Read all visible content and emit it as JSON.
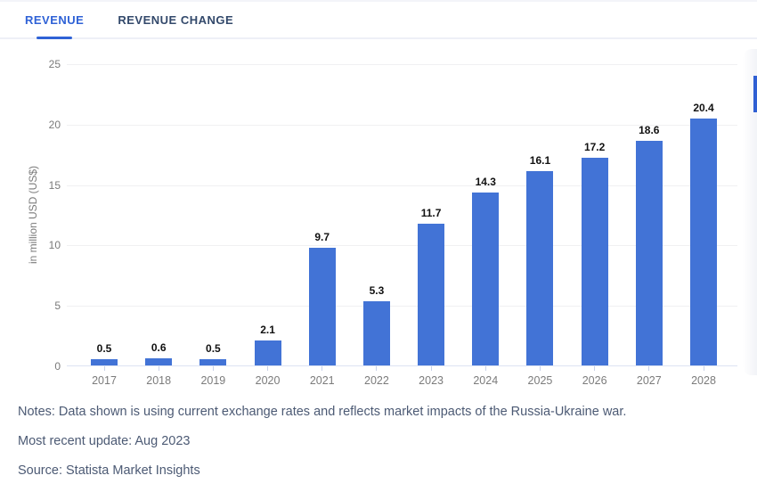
{
  "tabs": [
    {
      "label": "REVENUE",
      "active": true
    },
    {
      "label": "REVENUE CHANGE",
      "active": false
    }
  ],
  "chart_data": {
    "type": "bar",
    "title": "",
    "categories": [
      "2017",
      "2018",
      "2019",
      "2020",
      "2021",
      "2022",
      "2023",
      "2024",
      "2025",
      "2026",
      "2027",
      "2028"
    ],
    "values": [
      0.5,
      0.6,
      0.5,
      2.1,
      9.7,
      5.3,
      11.7,
      14.3,
      16.1,
      17.2,
      18.6,
      20.4
    ],
    "xlabel": "",
    "ylabel": "in million USD (US$)",
    "ylim": [
      0,
      25
    ],
    "yticks": [
      0,
      5,
      10,
      15,
      20,
      25
    ],
    "grid": true,
    "legend": "none",
    "value_labels_shown": true,
    "bar_color": "#4273d6"
  },
  "notes": {
    "notes_line": "Notes: Data shown is using current exchange rates and reflects market impacts of the Russia-Ukraine war.",
    "update_line": "Most recent update: Aug 2023",
    "source_line": "Source: Statista Market Insights"
  },
  "colors": {
    "accent_blue": "#2f62d6",
    "bar_blue": "#4273d6",
    "inactive_tab": "#33496b",
    "notes_text": "#4c5a74",
    "axis_text": "#7a7a7a"
  }
}
